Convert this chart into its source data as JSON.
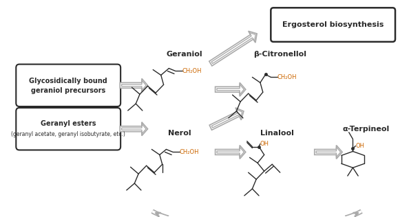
{
  "bg_color": "#ffffff",
  "line_color": "#2a2a2a",
  "arrow_color": "#aaaaaa",
  "orange_color": "#cc6600",
  "box_color": "#2a2a2a",
  "labels": {
    "glyco_line1": "Glycosidically bound",
    "glyco_line2": "geraniol precursors",
    "geranyl_line1": "Geranyl esters",
    "geranyl_line2": "(geranyl acetate, geranyl isobutyrate, etc.)",
    "ergosterol": "Ergosterol biosynthesis",
    "geraniol": "Geraniol",
    "beta_citronellol": "β-Citronellol",
    "nerol": "Nerol",
    "linalool": "Linalool",
    "alpha_terpineol": "α-Terpineol"
  },
  "figsize": [
    6.1,
    3.16
  ],
  "dpi": 100
}
